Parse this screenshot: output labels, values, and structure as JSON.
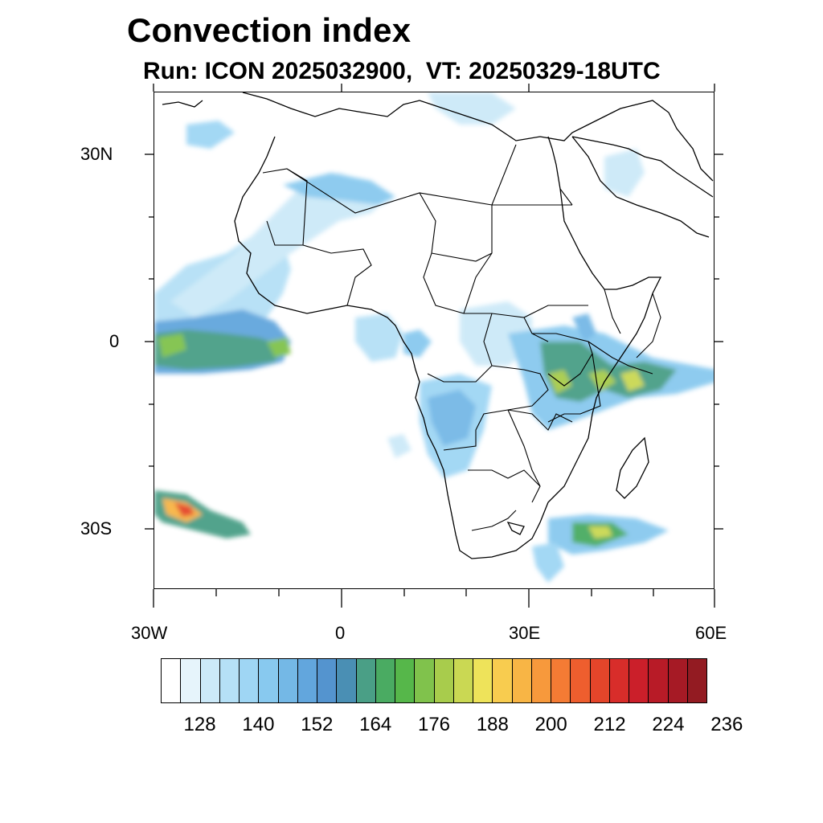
{
  "title": "Convection index",
  "subtitle": "Run: ICON 2025032900,  VT: 20250329-18UTC",
  "axes": {
    "lat_labels": [
      "30N",
      "0",
      "30S"
    ],
    "lon_labels": [
      "30W",
      "0",
      "30E",
      "60E"
    ]
  },
  "map": {
    "region": "Africa",
    "projection": "lat-lon",
    "lon_range": [
      -30,
      60
    ],
    "lat_range": [
      -40,
      40
    ]
  },
  "colorbar": {
    "tick_labels": [
      "128",
      "140",
      "152",
      "164",
      "176",
      "188",
      "200",
      "212",
      "224",
      "236"
    ],
    "colors": [
      "#ffffff",
      "#e6f4fb",
      "#cce9f8",
      "#b5e0f6",
      "#9fd6f4",
      "#88c9ef",
      "#74b8e6",
      "#62a6dd",
      "#5494cf",
      "#4a8fb4",
      "#4a9f86",
      "#4aab62",
      "#56b74a",
      "#80c24c",
      "#a8cc4c",
      "#cad853",
      "#eee35a",
      "#f8cc4f",
      "#f8b545",
      "#f7993c",
      "#f47b34",
      "#ee5e2e",
      "#e4452a",
      "#d82d2a",
      "#cb1f2a",
      "#b81b27",
      "#a61a25",
      "#931b22"
    ]
  }
}
